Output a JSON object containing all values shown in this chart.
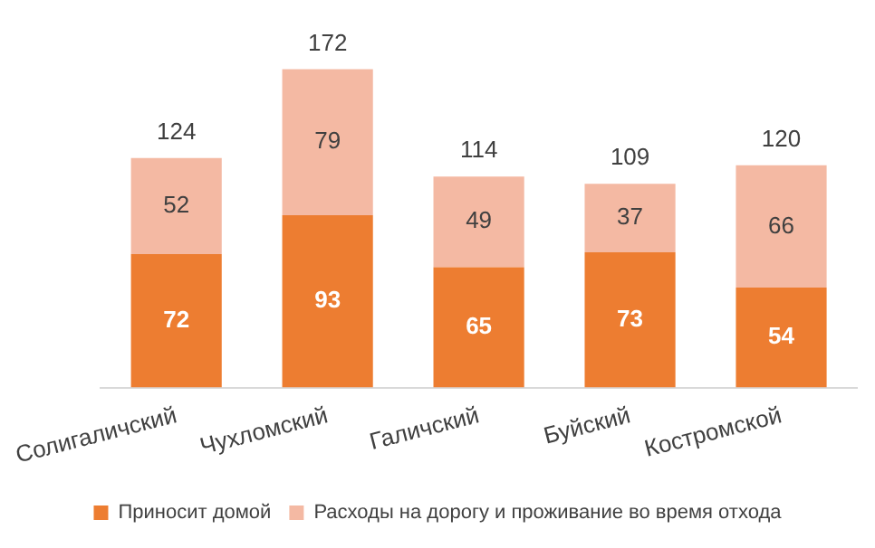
{
  "chart_data": {
    "type": "bar",
    "stacked": true,
    "categories": [
      "Солигаличский",
      "Чухломский",
      "Галичский",
      "Буйский",
      "Костромской"
    ],
    "series": [
      {
        "name": "Приносит домой",
        "color": "#ed7d31",
        "values": [
          72,
          93,
          65,
          73,
          54
        ]
      },
      {
        "name": "Расходы на дорогу и проживание во время отхода",
        "color": "#f4b9a3",
        "values": [
          52,
          79,
          49,
          37,
          66
        ]
      }
    ],
    "data_labels": true,
    "totals": [
      "124",
      "172",
      "114",
      "109",
      "120"
    ],
    "legend": "bottom",
    "grid": false
  }
}
